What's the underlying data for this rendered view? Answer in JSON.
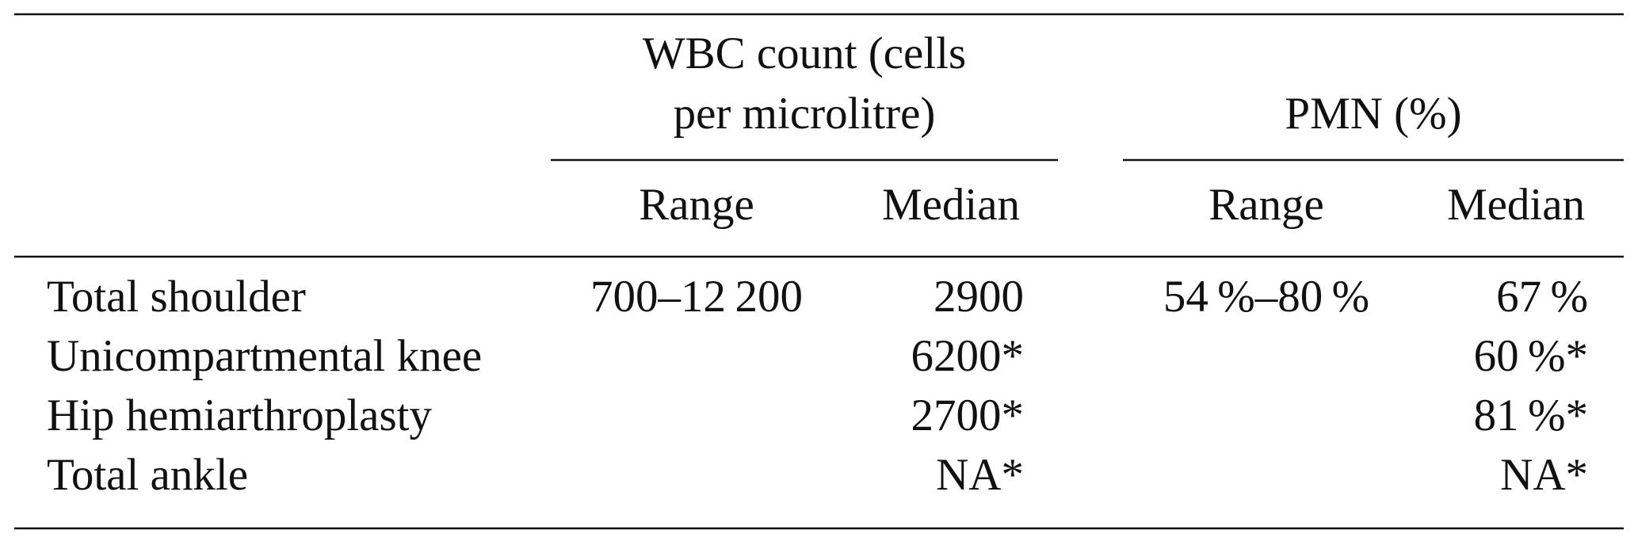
{
  "table": {
    "header": {
      "groups": [
        {
          "lines": [
            "WBC count (cells",
            "per microlitre)"
          ]
        },
        {
          "lines": [
            "PMN (%)"
          ]
        }
      ],
      "subheaders": [
        "Range",
        "Median",
        "Range",
        "Median"
      ]
    },
    "rows": [
      [
        "Total shoulder",
        "700–12 200",
        "2900",
        "54 %–80 %",
        "67 %"
      ],
      [
        "Unicompartmental knee",
        null,
        "6200*",
        null,
        "60 %*"
      ],
      [
        "Hip hemiarthroplasty",
        null,
        "2700*",
        null,
        "81 %*"
      ],
      [
        "Total ankle",
        null,
        "NA*",
        null,
        "NA*"
      ]
    ]
  }
}
